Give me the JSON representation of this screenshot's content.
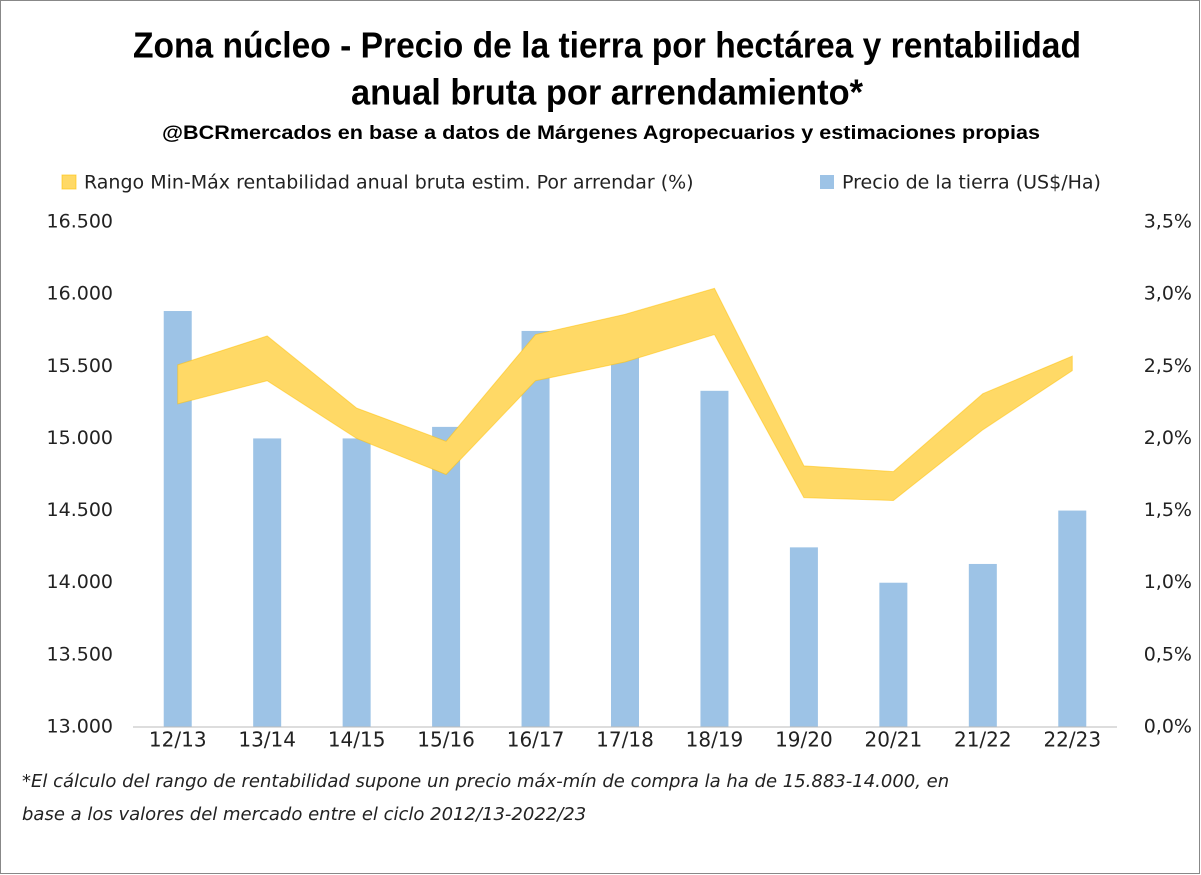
{
  "chart_data": {
    "type": "bar-range",
    "title": [
      "Zona núcleo - Precio de la tierra por hectárea y rentabilidad",
      "anual bruta por arrendamiento*"
    ],
    "subtitle": "@BCRmercados  en base a datos de Márgenes Agropecuarios y estimaciones propias",
    "categories": [
      "12/13",
      "13/14",
      "14/15",
      "15/16",
      "16/17",
      "17/18",
      "18/19",
      "19/20",
      "20/21",
      "21/22",
      "22/23"
    ],
    "series": [
      {
        "name": "Rango Min-Máx rentabilidad anual bruta estim. Por arrendar (%)",
        "color": "#ffd966",
        "axis": "y2",
        "low": [
          2.24,
          2.4,
          2.0,
          1.75,
          2.4,
          2.53,
          2.72,
          1.59,
          1.57,
          2.06,
          2.47
        ],
        "high": [
          2.51,
          2.71,
          2.21,
          1.98,
          2.72,
          2.86,
          3.04,
          1.81,
          1.77,
          2.31,
          2.57
        ]
      },
      {
        "name": "Precio de la tierra (US$/Ha)",
        "color": "#9dc3e6",
        "axis": "y",
        "values": [
          15883,
          15000,
          15000,
          15080,
          15745,
          15740,
          15330,
          14245,
          14000,
          14130,
          14500
        ]
      }
    ],
    "ylim": [
      13000,
      16500
    ],
    "yticks": [
      {
        "value": 13000,
        "label": "13.000"
      },
      {
        "value": 13500,
        "label": "13.500"
      },
      {
        "value": 14000,
        "label": "14.000"
      },
      {
        "value": 14500,
        "label": "14.500"
      },
      {
        "value": 15000,
        "label": "15.000"
      },
      {
        "value": 15500,
        "label": "15.500"
      },
      {
        "value": 16000,
        "label": "16.000"
      },
      {
        "value": 16500,
        "label": "16.500"
      }
    ],
    "y2lim": [
      0,
      3.5
    ],
    "y2ticks": [
      {
        "value": 0,
        "label": "0,0%"
      },
      {
        "value": 0.5,
        "label": "0,5%"
      },
      {
        "value": 1.0,
        "label": "1,0%"
      },
      {
        "value": 1.5,
        "label": "1,5%"
      },
      {
        "value": 2.0,
        "label": "2,0%"
      },
      {
        "value": 2.5,
        "label": "2,5%"
      },
      {
        "value": 3.0,
        "label": "3,0%"
      },
      {
        "value": 3.5,
        "label": "3,5%"
      }
    ],
    "grid": false,
    "legend": "top",
    "note": [
      "*El cálculo del rango de rentabilidad supone un precio máx-mín de compra la ha de 15.883-14.000, en",
      "base a los valores del mercado entre el ciclo 2012/13-2022/23"
    ]
  }
}
